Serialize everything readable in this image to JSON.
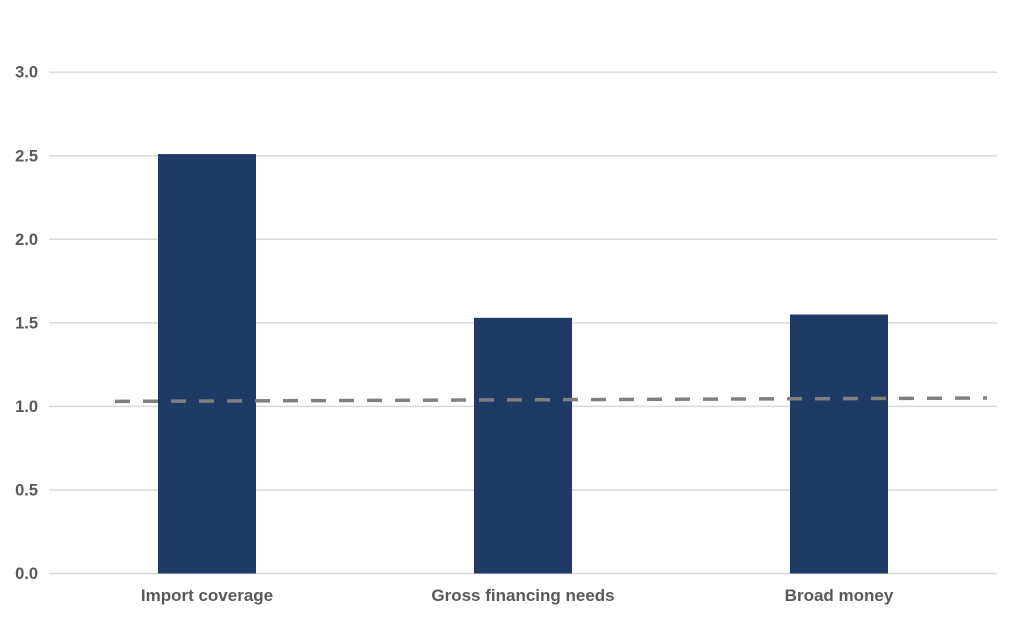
{
  "chart_data": {
    "type": "bar",
    "title": "",
    "xlabel": "",
    "ylabel": "",
    "categories": [
      "Import coverage",
      "Gross financing needs",
      "Broad money"
    ],
    "values": [
      2.51,
      1.53,
      1.55
    ],
    "yticks": [
      0.0,
      0.5,
      1.0,
      1.5,
      2.0,
      2.5,
      3.0
    ],
    "ytick_labels": [
      "0.0",
      "0.5",
      "1.0",
      "1.5",
      "2.0",
      "2.5",
      "3.0"
    ],
    "ylim": [
      0,
      3
    ],
    "grid": true,
    "legend": false,
    "reference_line": {
      "style": "dashed",
      "value_start": 1.03,
      "value_end": 1.05
    }
  },
  "colors": {
    "bar": "#1F3A64",
    "gridline": "#D9D9D9",
    "axis_text": "#595959",
    "reference_line": "#808080",
    "background": "#FFFFFF"
  }
}
